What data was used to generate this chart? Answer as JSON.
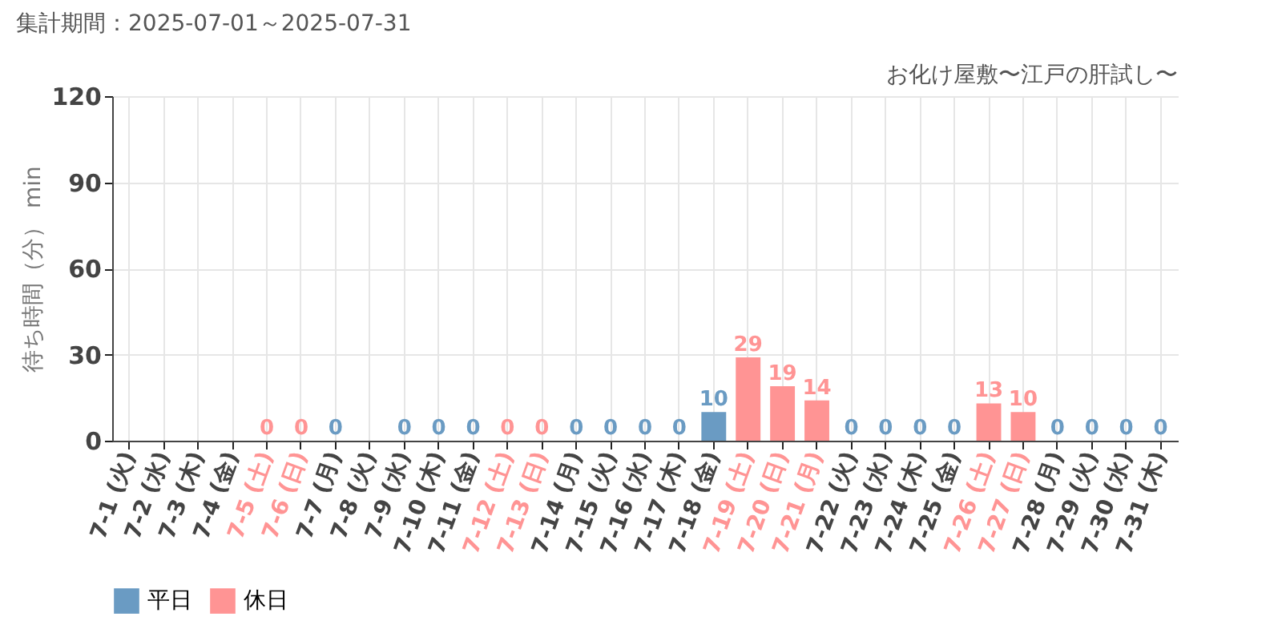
{
  "chart_data": {
    "type": "bar",
    "title": "集計期間：2025-07-01～2025-07-31",
    "subtitle": "お化け屋敷〜江戸の肝試し〜",
    "ylabel": "待ち時間（分） min",
    "categories": [
      "7-1 (火)",
      "7-2 (水)",
      "7-3 (木)",
      "7-4 (金)",
      "7-5 (土)",
      "7-6 (日)",
      "7-7 (月)",
      "7-8 (火)",
      "7-9 (水)",
      "7-10 (木)",
      "7-11 (金)",
      "7-12 (土)",
      "7-13 (日)",
      "7-14 (月)",
      "7-15 (火)",
      "7-16 (水)",
      "7-17 (木)",
      "7-18 (金)",
      "7-19 (土)",
      "7-20 (日)",
      "7-21 (月)",
      "7-22 (火)",
      "7-23 (水)",
      "7-24 (木)",
      "7-25 (金)",
      "7-26 (土)",
      "7-27 (日)",
      "7-28 (月)",
      "7-29 (火)",
      "7-30 (水)",
      "7-31 (木)"
    ],
    "series": [
      {
        "name": "平日",
        "color": "#6a9bc3",
        "values": [
          null,
          null,
          null,
          null,
          null,
          null,
          0,
          null,
          0,
          0,
          0,
          null,
          null,
          0,
          0,
          0,
          0,
          10,
          null,
          null,
          null,
          0,
          0,
          0,
          0,
          null,
          null,
          0,
          0,
          0,
          0
        ]
      },
      {
        "name": "休日",
        "color": "#ff9494",
        "values": [
          null,
          null,
          null,
          null,
          0,
          0,
          null,
          null,
          null,
          null,
          null,
          0,
          0,
          null,
          null,
          null,
          null,
          null,
          29,
          19,
          14,
          null,
          null,
          null,
          null,
          13,
          10,
          null,
          null,
          null,
          null
        ]
      }
    ],
    "ylim": [
      0,
      120
    ],
    "yticks": [
      0,
      30,
      60,
      90,
      120
    ],
    "grid": true,
    "legend": "bottom left",
    "data_labels": true
  }
}
